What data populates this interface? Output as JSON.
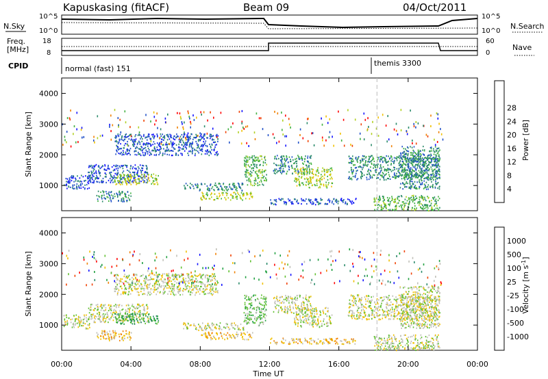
{
  "header": {
    "station": "Kapuskasing (fitACF)",
    "beam": "Beam 09",
    "date": "04/Oct/2011"
  },
  "top_panels": {
    "nsky_label": "N.Sky",
    "nsky_ticks": [
      "10^5",
      "10^0"
    ],
    "nsearch_label": "N.Search",
    "nsearch_ticks": [
      "10^5",
      "10^0"
    ],
    "freq_label_line1": "Freq.",
    "freq_label_line2": "[MHz]",
    "freq_ticks": [
      "18",
      "8"
    ],
    "nave_label": "Nave",
    "nave_ticks": [
      "60",
      "0"
    ],
    "cpid_label": "CPID",
    "cpid_segments": [
      {
        "label": "normal (fast) 151",
        "start_hour": 0
      },
      {
        "label": "themis 3300",
        "start_hour": 18.2
      }
    ]
  },
  "chart_data": [
    {
      "type": "heatmap",
      "name": "power",
      "xlabel": "",
      "ylabel": "Slant Range [km]",
      "x_ticks": [
        "00:00",
        "04:00",
        "08:00",
        "12:00",
        "16:00",
        "20:00",
        "00:00"
      ],
      "x_range_hours": [
        0,
        24
      ],
      "y_ticks": [
        1000,
        2000,
        3000,
        4000
      ],
      "y_range_km": [
        180,
        4500
      ],
      "colorbar_label": "Power [dB]",
      "colorbar_ticks": [
        "4",
        "8",
        "12",
        "16",
        "20",
        "24",
        "28"
      ],
      "colorbar_colors": [
        "#1010ff",
        "#2050c8",
        "#2a8a6a",
        "#40b040",
        "#b0d020",
        "#f0c000",
        "#f08000",
        "#f04000",
        "#ff0000"
      ],
      "scatter_regions": [
        {
          "t0": 0.1,
          "t1": 1.6,
          "r0": 900,
          "r1": 1350,
          "level": 1
        },
        {
          "t0": 1.5,
          "t1": 5.0,
          "r0": 1100,
          "r1": 1700,
          "level": 1
        },
        {
          "t0": 3.0,
          "t1": 5.6,
          "r0": 1050,
          "r1": 1400,
          "level": 4
        },
        {
          "t0": 2.0,
          "t1": 4.0,
          "r0": 500,
          "r1": 850,
          "level": 2
        },
        {
          "t0": 3.0,
          "t1": 9.0,
          "r0": 2000,
          "r1": 2700,
          "level": 1
        },
        {
          "t0": 7.0,
          "t1": 10.5,
          "r0": 850,
          "r1": 1100,
          "level": 2
        },
        {
          "t0": 8.0,
          "t1": 11.0,
          "r0": 550,
          "r1": 800,
          "level": 4
        },
        {
          "t0": 10.5,
          "t1": 11.8,
          "r0": 1000,
          "r1": 2000,
          "level": 3
        },
        {
          "t0": 12.2,
          "t1": 14.4,
          "r0": 1400,
          "r1": 2000,
          "level": 2
        },
        {
          "t0": 13.4,
          "t1": 15.6,
          "r0": 950,
          "r1": 1600,
          "level": 4
        },
        {
          "t0": 12.0,
          "t1": 17.0,
          "r0": 400,
          "r1": 600,
          "level": 1
        },
        {
          "t0": 16.5,
          "t1": 21.8,
          "r0": 1200,
          "r1": 2000,
          "level": 2
        },
        {
          "t0": 18.0,
          "t1": 21.8,
          "r0": 200,
          "r1": 700,
          "level": 3
        },
        {
          "t0": 19.5,
          "t1": 21.8,
          "r0": 900,
          "r1": 2300,
          "level": 2
        },
        {
          "t0": 0.0,
          "t1": 22.0,
          "r0": 2300,
          "r1": 3500,
          "level": 0
        }
      ]
    },
    {
      "type": "heatmap",
      "name": "velocity",
      "xlabel": "Time UT",
      "ylabel": "Slant Range [km]",
      "x_ticks": [
        "00:00",
        "04:00",
        "08:00",
        "12:00",
        "16:00",
        "20:00",
        "00:00"
      ],
      "x_range_hours": [
        0,
        24
      ],
      "y_ticks": [
        1000,
        2000,
        3000,
        4000
      ],
      "y_range_km": [
        180,
        4500
      ],
      "colorbar_label": "Velocity [m s^-1]",
      "colorbar_ticks": [
        "1000",
        "500",
        "100",
        "25",
        "-25",
        "-100",
        "-500",
        "-1000"
      ],
      "colorbar_colors": [
        "#1010ff",
        "#2a8a6a",
        "#20a040",
        "#60c030",
        "#c0c0b8",
        "#f0c000",
        "#f08000",
        "#f04000",
        "#ff0000"
      ],
      "scatter_regions": [
        {
          "t0": 0.1,
          "t1": 1.6,
          "r0": 900,
          "r1": 1350,
          "level": 4
        },
        {
          "t0": 1.5,
          "t1": 5.0,
          "r0": 1100,
          "r1": 1700,
          "level": 4
        },
        {
          "t0": 3.0,
          "t1": 5.6,
          "r0": 1050,
          "r1": 1400,
          "level": 2
        },
        {
          "t0": 2.0,
          "t1": 4.0,
          "r0": 500,
          "r1": 850,
          "level": 5
        },
        {
          "t0": 3.0,
          "t1": 9.0,
          "r0": 2000,
          "r1": 2700,
          "level": 4
        },
        {
          "t0": 7.0,
          "t1": 10.5,
          "r0": 850,
          "r1": 1100,
          "level": 4
        },
        {
          "t0": 8.0,
          "t1": 11.0,
          "r0": 550,
          "r1": 800,
          "level": 5
        },
        {
          "t0": 10.5,
          "t1": 11.8,
          "r0": 1000,
          "r1": 2000,
          "level": 3
        },
        {
          "t0": 12.2,
          "t1": 14.4,
          "r0": 1400,
          "r1": 2000,
          "level": 4
        },
        {
          "t0": 13.4,
          "t1": 15.6,
          "r0": 950,
          "r1": 1600,
          "level": 4
        },
        {
          "t0": 12.0,
          "t1": 17.0,
          "r0": 400,
          "r1": 600,
          "level": 5
        },
        {
          "t0": 16.5,
          "t1": 21.8,
          "r0": 1200,
          "r1": 2000,
          "level": 4
        },
        {
          "t0": 18.0,
          "t1": 21.8,
          "r0": 200,
          "r1": 700,
          "level": 4
        },
        {
          "t0": 19.5,
          "t1": 21.8,
          "r0": 900,
          "r1": 2300,
          "level": 4
        },
        {
          "t0": 0.0,
          "t1": 22.0,
          "r0": 2300,
          "r1": 3500,
          "level": 6
        }
      ]
    }
  ]
}
